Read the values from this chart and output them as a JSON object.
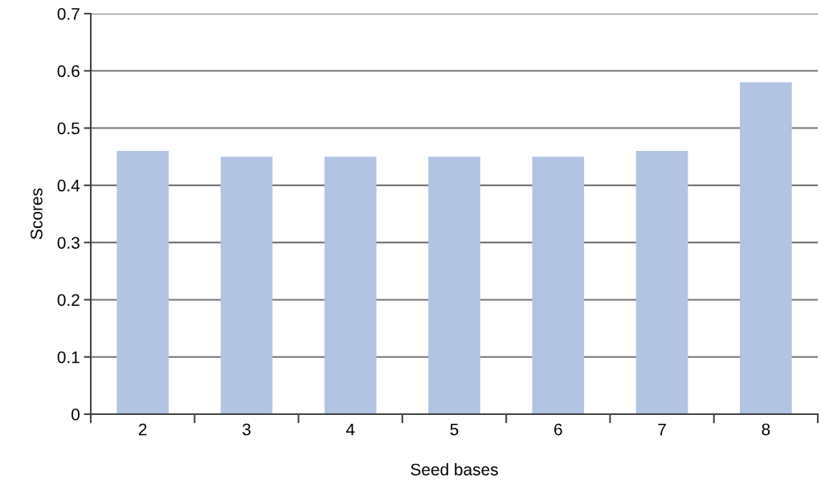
{
  "chart_data": {
    "type": "bar",
    "xlabel": "Seed bases",
    "ylabel": "Scores",
    "categories": [
      "2",
      "3",
      "4",
      "5",
      "6",
      "7",
      "8"
    ],
    "values": [
      0.46,
      0.45,
      0.45,
      0.45,
      0.45,
      0.46,
      0.58
    ],
    "color": "#b3c4e3",
    "ylim": [
      0,
      0.7
    ],
    "yticks": [
      {
        "value": 0,
        "label": "0"
      },
      0.1,
      0.2,
      0.3,
      0.4,
      0.5,
      0.6,
      0.7
    ],
    "grid": "y"
  }
}
